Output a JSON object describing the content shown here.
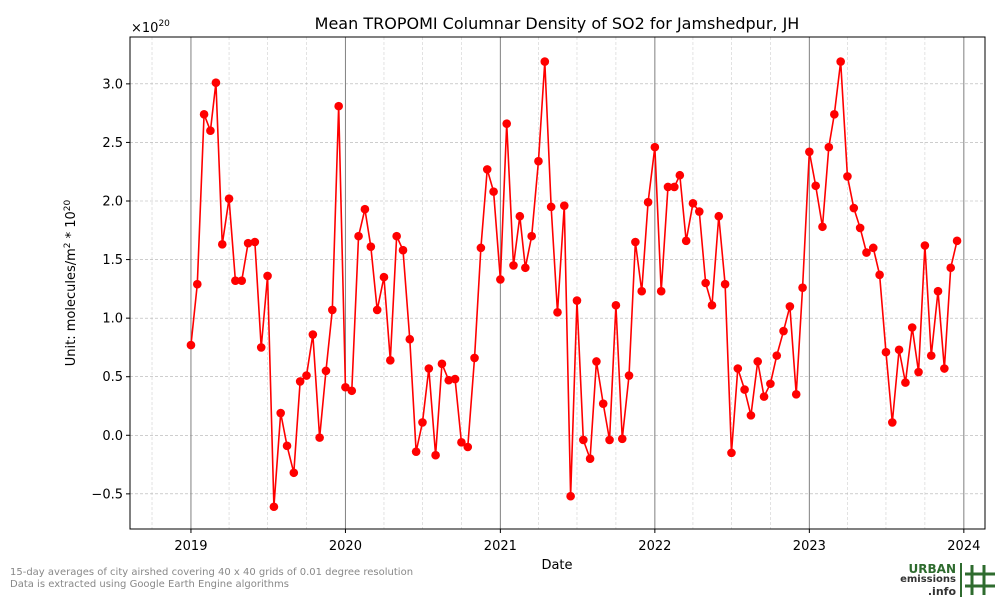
{
  "chart_data": {
    "type": "line",
    "title": "Mean TROPOMI Columnar Density of SO2 for Jamshedpur, JH",
    "xlabel": "Date",
    "ylabel_prefix": "Unit: molecules/m",
    "ylabel_sup1": "2",
    "ylabel_mid": " * 10",
    "ylabel_sup2": "20",
    "offset_base": "×10",
    "offset_exp": "20",
    "xlim": [
      "2018-08-10",
      "2024-02-20"
    ],
    "ylim": [
      -0.8,
      3.4
    ],
    "x_ticks": [
      "2019-01-01",
      "2020-01-01",
      "2021-01-01",
      "2022-01-01",
      "2023-01-01",
      "2024-01-01"
    ],
    "x_tick_labels": [
      "2019",
      "2020",
      "2021",
      "2022",
      "2023",
      "2024"
    ],
    "y_ticks": [
      -0.5,
      0.0,
      0.5,
      1.0,
      1.5,
      2.0,
      2.5,
      3.0
    ],
    "y_tick_labels": [
      "−0.5",
      "0.0",
      "0.5",
      "1.0",
      "1.5",
      "2.0",
      "2.5",
      "3.0"
    ],
    "grid": true,
    "line_color": "#ff0000",
    "year_line_color": "#808080",
    "series": [
      {
        "x": [
          "2019-01-01",
          "2019-01-16",
          "2019-02-01",
          "2019-02-16",
          "2019-03-01",
          "2019-03-16",
          "2019-04-01",
          "2019-04-16",
          "2019-05-01",
          "2019-05-16",
          "2019-06-01",
          "2019-06-16",
          "2019-07-01",
          "2019-07-16",
          "2019-08-01",
          "2019-08-16",
          "2019-09-01",
          "2019-09-16",
          "2019-10-01",
          "2019-10-16",
          "2019-11-01",
          "2019-11-16",
          "2019-12-01",
          "2019-12-16",
          "2020-01-01",
          "2020-01-16",
          "2020-02-01",
          "2020-02-16",
          "2020-03-01",
          "2020-03-16",
          "2020-04-01",
          "2020-04-16",
          "2020-05-01",
          "2020-05-16",
          "2020-06-01",
          "2020-06-16",
          "2020-07-01",
          "2020-07-16",
          "2020-08-01",
          "2020-08-16",
          "2020-09-01",
          "2020-09-16",
          "2020-10-01",
          "2020-10-16",
          "2020-11-01",
          "2020-11-16",
          "2020-12-01",
          "2020-12-16",
          "2021-01-01",
          "2021-01-16",
          "2021-02-01",
          "2021-02-16",
          "2021-03-01",
          "2021-03-16",
          "2021-04-01",
          "2021-04-16",
          "2021-05-01",
          "2021-05-16",
          "2021-06-01",
          "2021-06-16",
          "2021-07-01",
          "2021-07-16",
          "2021-08-01",
          "2021-08-16",
          "2021-09-01",
          "2021-09-16",
          "2021-10-01",
          "2021-10-16",
          "2021-11-01",
          "2021-11-16",
          "2021-12-01",
          "2021-12-16",
          "2022-01-01",
          "2022-01-16",
          "2022-02-01",
          "2022-02-16",
          "2022-03-01",
          "2022-03-16",
          "2022-04-01",
          "2022-04-16",
          "2022-05-01",
          "2022-05-16",
          "2022-06-01",
          "2022-06-16",
          "2022-07-01",
          "2022-07-16",
          "2022-08-01",
          "2022-08-16",
          "2022-09-01",
          "2022-09-16",
          "2022-10-01",
          "2022-10-16",
          "2022-11-01",
          "2022-11-16",
          "2022-12-01",
          "2022-12-16",
          "2023-01-01",
          "2023-01-16",
          "2023-02-01",
          "2023-02-16",
          "2023-03-01",
          "2023-03-16",
          "2023-04-01",
          "2023-04-16",
          "2023-05-01",
          "2023-05-16",
          "2023-06-01",
          "2023-06-16",
          "2023-07-01",
          "2023-07-16",
          "2023-08-01",
          "2023-08-16",
          "2023-09-01",
          "2023-09-16",
          "2023-10-01",
          "2023-10-16",
          "2023-11-01",
          "2023-11-16",
          "2023-12-01",
          "2023-12-16"
        ],
        "y": [
          0.77,
          1.29,
          2.74,
          2.6,
          3.01,
          1.63,
          2.02,
          1.32,
          1.32,
          1.64,
          1.65,
          0.75,
          1.36,
          -0.61,
          0.19,
          -0.09,
          -0.32,
          0.46,
          0.51,
          0.86,
          -0.02,
          0.55,
          1.07,
          2.81,
          0.41,
          0.38,
          1.7,
          1.93,
          1.61,
          1.07,
          1.35,
          0.64,
          1.7,
          1.58,
          0.82,
          -0.14,
          0.11,
          0.57,
          -0.17,
          0.61,
          0.47,
          0.48,
          -0.06,
          -0.1,
          0.66,
          1.6,
          2.27,
          2.08,
          1.33,
          2.66,
          1.45,
          1.87,
          1.43,
          1.7,
          2.34,
          3.19,
          1.95,
          1.05,
          1.96,
          -0.52,
          1.15,
          -0.04,
          -0.2,
          0.63,
          0.27,
          -0.04,
          1.11,
          -0.03,
          0.51,
          1.65,
          1.23,
          1.99,
          2.46,
          1.23,
          2.12,
          2.12,
          2.22,
          1.66,
          1.98,
          1.91,
          1.3,
          1.11,
          1.87,
          1.29,
          -0.15,
          0.57,
          0.39,
          0.17,
          0.63,
          0.33,
          0.44,
          0.68,
          0.89,
          1.1,
          0.35,
          1.26,
          2.42,
          2.13,
          1.78,
          2.46,
          2.74,
          3.19,
          2.21,
          1.94,
          1.77,
          1.56,
          1.6,
          1.37,
          0.71,
          0.11,
          0.73,
          0.45,
          0.92,
          0.54,
          1.62,
          0.68,
          1.23,
          0.57,
          1.43,
          1.66
        ]
      }
    ]
  },
  "footnote": {
    "line1": "15-day averages of city airshed covering 40 x 40 grids of 0.01 degree resolution",
    "line2": "Data is extracted using Google Earth Engine algorithms"
  },
  "logo": {
    "line1": "URBAN",
    "line2": "emissions",
    "line3": ".info",
    "color": "#2e6b2e"
  }
}
